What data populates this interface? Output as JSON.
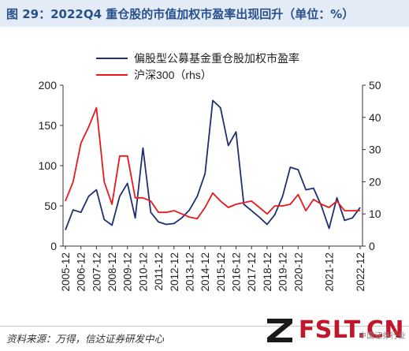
{
  "header": {
    "title": "图 29：2022Q4 重仓股的市值加权市盈率出现回升（单位：%）"
  },
  "footer": {
    "source": "资料来源：万得，信达证券研发中心"
  },
  "watermark": {
    "text": "FSLT.CN",
    "sub": "中国证券行业"
  },
  "colors": {
    "pe": "#1f2f73",
    "hs300": "#e8191c",
    "title": "#27508c",
    "title_bg": "#e3ecf6"
  },
  "chart_data": {
    "type": "line",
    "title": "",
    "categories": [
      "2005-12",
      "2006-06",
      "2006-12",
      "2007-06",
      "2007-12",
      "2008-06",
      "2008-12",
      "2009-06",
      "2009-12",
      "2010-06",
      "2010-12",
      "2011-06",
      "2011-12",
      "2012-06",
      "2012-12",
      "2013-06",
      "2013-12",
      "2014-06",
      "2014-12",
      "2015-06",
      "2015-12",
      "2016-06",
      "2016-12",
      "2017-06",
      "2017-12",
      "2018-06",
      "2018-12",
      "2019-06",
      "2019-12",
      "2020-06",
      "2020-12",
      "2021-03",
      "2021-06",
      "2021-09",
      "2021-12",
      "2022-03",
      "2022-06",
      "2022-09",
      "2022-12"
    ],
    "x_tick_labels": [
      "2005-12",
      "2006-12",
      "2007-12",
      "2008-12",
      "2009-12",
      "2010-12",
      "2011-12",
      "2012-12",
      "2013-12",
      "2014-12",
      "2015-12",
      "2016-12",
      "2017-12",
      "2018-12",
      "2019-12",
      "2020-12",
      "2021-12",
      "2022-12"
    ],
    "series": [
      {
        "name": "偏股型公募基金重仓股加权市盈率",
        "axis": "left",
        "values": [
          20,
          45,
          42,
          62,
          70,
          33,
          26,
          62,
          78,
          35,
          122,
          42,
          30,
          27,
          28,
          35,
          45,
          62,
          90,
          181,
          172,
          125,
          142,
          52,
          44,
          36,
          27,
          39,
          62,
          98,
          95,
          70,
          72,
          50,
          22,
          60,
          32,
          35,
          48
        ]
      },
      {
        "name": "沪深300（rhs）",
        "axis": "right",
        "values": [
          14,
          20,
          32,
          37,
          43,
          20,
          13,
          28,
          28,
          15,
          15,
          14,
          10.5,
          10.5,
          11,
          10,
          9,
          8.5,
          12,
          16.5,
          14,
          12,
          13,
          13.5,
          14,
          12,
          10,
          12.5,
          12.5,
          13,
          16,
          11,
          14.5,
          13,
          12,
          14,
          11,
          11,
          11
        ]
      }
    ],
    "ylim_left": [
      0,
      200
    ],
    "yticks_left": [
      0,
      50,
      100,
      150,
      200
    ],
    "ylim_right": [
      0,
      50
    ],
    "yticks_right": [
      0,
      10,
      20,
      30,
      40,
      50
    ],
    "legend_position": "top-center",
    "grid": false
  }
}
